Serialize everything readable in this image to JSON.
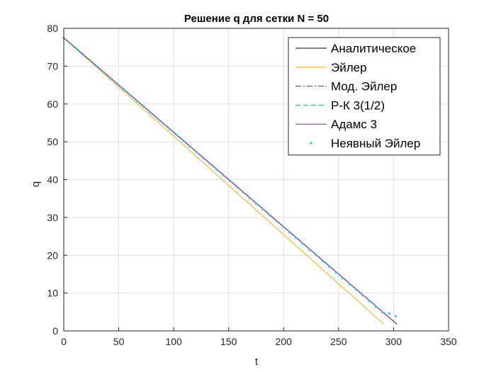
{
  "chart_data": {
    "type": "line",
    "title": "Решение q для сетки N = 50",
    "xlabel": "t",
    "ylabel": "q",
    "xlim": [
      0,
      350
    ],
    "ylim": [
      0,
      80
    ],
    "xticks": [
      0,
      50,
      100,
      150,
      200,
      250,
      300,
      350
    ],
    "yticks": [
      0,
      10,
      20,
      30,
      40,
      50,
      60,
      70,
      80
    ],
    "grid": true,
    "legend_position": "top-right",
    "series": [
      {
        "name": "Аналитическое",
        "style": "solid",
        "color": "#000000",
        "x": [
          0,
          303
        ],
        "y": [
          77.5,
          1.8
        ]
      },
      {
        "name": "Эйлер",
        "style": "solid",
        "color": "#EDB120",
        "x": [
          0,
          291
        ],
        "y": [
          77.5,
          1.8
        ]
      },
      {
        "name": "Мод. Эйлер",
        "style": "dashdot",
        "color": "#A2142F",
        "x": [
          0,
          303
        ],
        "y": [
          77.5,
          1.8
        ]
      },
      {
        "name": "Р-К 3(1/2)",
        "style": "dashed",
        "color": "#2AA198",
        "x": [
          0,
          303
        ],
        "y": [
          77.5,
          1.8
        ]
      },
      {
        "name": "Адамс 3",
        "style": "solid",
        "color": "#7E2F8E",
        "x": [
          0,
          303
        ],
        "y": [
          77.5,
          1.8
        ]
      },
      {
        "name": "Неявный Эйлер",
        "style": "dots",
        "color": "#4DBEEE",
        "x": [
          0,
          6.04,
          12.08,
          18.12,
          24.16,
          30.2,
          36.24,
          42.28,
          48.32,
          54.36,
          60.4,
          66.44,
          72.48,
          78.52,
          84.56,
          90.6,
          96.64,
          102.68,
          108.72,
          114.76,
          120.8,
          126.84,
          132.88,
          138.92,
          144.96,
          151.0,
          157.04,
          163.08,
          169.12,
          175.16,
          181.2,
          187.24,
          193.28,
          199.32,
          205.36,
          211.4,
          217.44,
          223.48,
          229.52,
          235.56,
          241.6,
          247.64,
          253.68,
          259.72,
          265.76,
          271.8,
          277.84,
          283.88,
          289.92,
          295.96,
          302.0
        ],
        "y": [
          77.5,
          75.99,
          74.48,
          72.96,
          71.45,
          69.94,
          68.43,
          66.91,
          65.4,
          63.89,
          62.38,
          60.86,
          59.35,
          57.84,
          56.33,
          54.81,
          53.3,
          51.79,
          50.28,
          48.76,
          47.25,
          45.74,
          44.23,
          42.71,
          41.2,
          39.69,
          38.18,
          36.66,
          35.15,
          33.64,
          32.13,
          30.61,
          29.1,
          27.59,
          26.08,
          24.56,
          23.05,
          21.54,
          20.03,
          18.51,
          17.0,
          15.49,
          13.98,
          12.46,
          10.95,
          9.44,
          7.93,
          6.41,
          4.9,
          4.6,
          3.9
        ]
      }
    ]
  }
}
